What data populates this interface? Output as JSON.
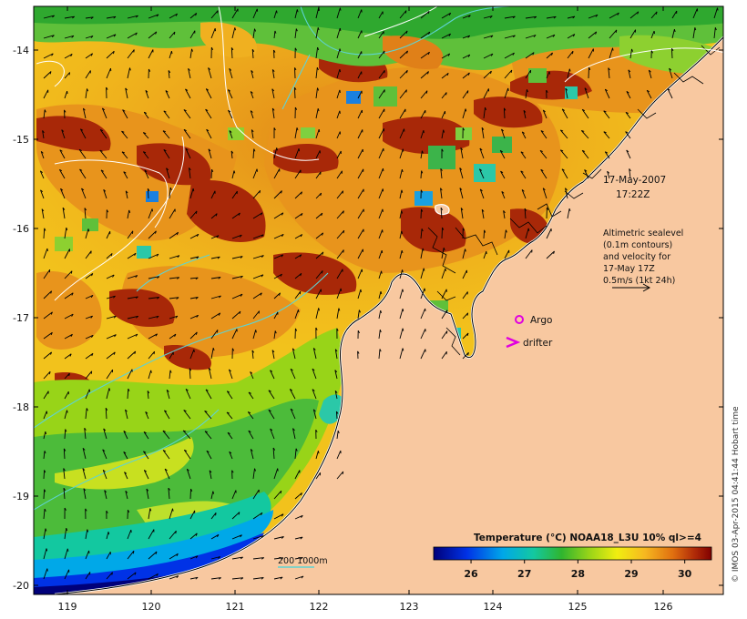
{
  "map": {
    "latitude_labels": [
      "-14",
      "-15",
      "-16",
      "-17",
      "-18",
      "-19",
      "-20"
    ],
    "longitude_labels": [
      "119",
      "120",
      "121",
      "122",
      "123",
      "124",
      "125",
      "126"
    ],
    "colors": {
      "land": "#f8c8a0",
      "coast": "#ffffff",
      "contour": "#5ed3d3",
      "sealevel": "#ffffff",
      "marker": "#e000e0",
      "arrow": "#000000"
    }
  },
  "annotations": {
    "date": "17-May-2007",
    "time": "17:22Z",
    "legend_lines": [
      "Altimetric sealevel",
      "(0.1m contours)",
      "and velocity for",
      "17-May 17Z",
      "0.5m/s (1kt 24h)"
    ],
    "argo_label": "Argo",
    "drifter_label": "drifter",
    "bathy_label": "200  1000m"
  },
  "colorbar": {
    "title": "Temperature (°C) NOAA18_L3U 10% ql>=4",
    "ticks": [
      "26",
      "27",
      "28",
      "29",
      "30"
    ],
    "range": [
      25.3,
      30.5
    ]
  },
  "credit": "© IMOS 03-Apr-2015 04:41:44 Hobart time"
}
